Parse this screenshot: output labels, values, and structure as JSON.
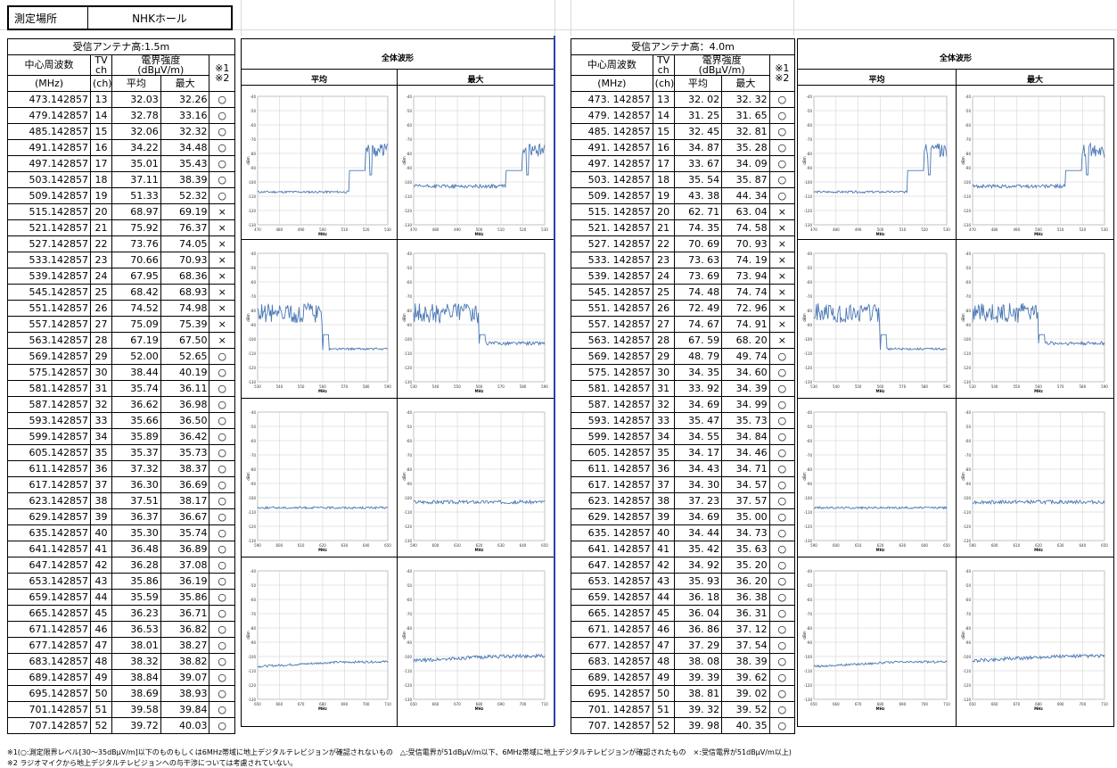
{
  "location": {
    "label": "測定場所",
    "value": "NHKホール"
  },
  "left": {
    "antenna": "受信アンテナ高:1.5m",
    "hdr_freq": "中心周波数",
    "hdr_ch": "TV\nch",
    "hdr_field": "電界強度\n(dBμV/m)",
    "hdr_note": "※1\n※2",
    "unit_freq": "(MHz)",
    "unit_ch": "(ch)",
    "hdr_avg": "平均",
    "hdr_max": "最大",
    "rows": [
      [
        "473.142857",
        "13",
        "32.03",
        "32.26",
        "○"
      ],
      [
        "479.142857",
        "14",
        "32.78",
        "33.16",
        "○"
      ],
      [
        "485.142857",
        "15",
        "32.06",
        "32.32",
        "○"
      ],
      [
        "491.142857",
        "16",
        "34.22",
        "34.48",
        "○"
      ],
      [
        "497.142857",
        "17",
        "35.01",
        "35.43",
        "○"
      ],
      [
        "503.142857",
        "18",
        "37.11",
        "38.39",
        "○"
      ],
      [
        "509.142857",
        "19",
        "51.33",
        "52.32",
        "○"
      ],
      [
        "515.142857",
        "20",
        "68.97",
        "69.19",
        "×"
      ],
      [
        "521.142857",
        "21",
        "75.92",
        "76.37",
        "×"
      ],
      [
        "527.142857",
        "22",
        "73.76",
        "74.05",
        "×"
      ],
      [
        "533.142857",
        "23",
        "70.66",
        "70.93",
        "×"
      ],
      [
        "539.142857",
        "24",
        "67.95",
        "68.36",
        "×"
      ],
      [
        "545.142857",
        "25",
        "68.42",
        "68.93",
        "×"
      ],
      [
        "551.142857",
        "26",
        "74.52",
        "74.98",
        "×"
      ],
      [
        "557.142857",
        "27",
        "75.09",
        "75.39",
        "×"
      ],
      [
        "563.142857",
        "28",
        "67.19",
        "67.50",
        "×"
      ],
      [
        "569.142857",
        "29",
        "52.00",
        "52.65",
        "○"
      ],
      [
        "575.142857",
        "30",
        "38.44",
        "40.19",
        "○"
      ],
      [
        "581.142857",
        "31",
        "35.74",
        "36.11",
        "○"
      ],
      [
        "587.142857",
        "32",
        "36.62",
        "36.98",
        "○"
      ],
      [
        "593.142857",
        "33",
        "35.66",
        "36.50",
        "○"
      ],
      [
        "599.142857",
        "34",
        "35.89",
        "36.42",
        "○"
      ],
      [
        "605.142857",
        "35",
        "35.37",
        "35.73",
        "○"
      ],
      [
        "611.142857",
        "36",
        "37.32",
        "38.37",
        "○"
      ],
      [
        "617.142857",
        "37",
        "36.30",
        "36.69",
        "○"
      ],
      [
        "623.142857",
        "38",
        "37.51",
        "38.17",
        "○"
      ],
      [
        "629.142857",
        "39",
        "36.37",
        "36.67",
        "○"
      ],
      [
        "635.142857",
        "40",
        "35.30",
        "35.74",
        "○"
      ],
      [
        "641.142857",
        "41",
        "36.48",
        "36.89",
        "○"
      ],
      [
        "647.142857",
        "42",
        "36.28",
        "37.08",
        "○"
      ],
      [
        "653.142857",
        "43",
        "35.86",
        "36.19",
        "○"
      ],
      [
        "659.142857",
        "44",
        "35.59",
        "35.86",
        "○"
      ],
      [
        "665.142857",
        "45",
        "36.23",
        "36.71",
        "○"
      ],
      [
        "671.142857",
        "46",
        "36.53",
        "36.82",
        "○"
      ],
      [
        "677.142857",
        "47",
        "38.01",
        "38.27",
        "○"
      ],
      [
        "683.142857",
        "48",
        "38.32",
        "38.82",
        "○"
      ],
      [
        "689.142857",
        "49",
        "38.84",
        "39.07",
        "○"
      ],
      [
        "695.142857",
        "50",
        "38.69",
        "38.93",
        "○"
      ],
      [
        "701.142857",
        "51",
        "39.58",
        "39.84",
        "○"
      ],
      [
        "707.142857",
        "52",
        "39.72",
        "40.03",
        "○"
      ]
    ]
  },
  "right": {
    "antenna": "受信アンテナ高：4.0m",
    "hdr_freq": "中心周波数",
    "hdr_ch": "TV\nch",
    "hdr_field": "電界強度\n(dBμV/m)",
    "hdr_note": "※1\n※2",
    "unit_freq": "(MHz)",
    "unit_ch": "(ch)",
    "hdr_avg": "平均",
    "hdr_max": "最大",
    "rows": [
      [
        "473. 142857",
        "13",
        "32. 02",
        "32. 32",
        "○"
      ],
      [
        "479. 142857",
        "14",
        "31. 25",
        "31. 65",
        "○"
      ],
      [
        "485. 142857",
        "15",
        "32. 45",
        "32. 81",
        "○"
      ],
      [
        "491. 142857",
        "16",
        "34. 87",
        "35. 28",
        "○"
      ],
      [
        "497. 142857",
        "17",
        "33. 67",
        "34. 09",
        "○"
      ],
      [
        "503. 142857",
        "18",
        "35. 54",
        "35. 87",
        "○"
      ],
      [
        "509. 142857",
        "19",
        "43. 38",
        "44. 34",
        "○"
      ],
      [
        "515. 142857",
        "20",
        "62. 71",
        "63. 04",
        "×"
      ],
      [
        "521. 142857",
        "21",
        "74. 35",
        "74. 58",
        "×"
      ],
      [
        "527. 142857",
        "22",
        "70. 69",
        "70. 93",
        "×"
      ],
      [
        "533. 142857",
        "23",
        "73. 63",
        "74. 19",
        "×"
      ],
      [
        "539. 142857",
        "24",
        "73. 69",
        "73. 94",
        "×"
      ],
      [
        "545. 142857",
        "25",
        "74. 48",
        "74. 74",
        "×"
      ],
      [
        "551. 142857",
        "26",
        "72. 49",
        "72. 96",
        "×"
      ],
      [
        "557. 142857",
        "27",
        "74. 67",
        "74. 91",
        "×"
      ],
      [
        "563. 142857",
        "28",
        "67. 59",
        "68. 20",
        "×"
      ],
      [
        "569. 142857",
        "29",
        "48. 79",
        "49. 74",
        "○"
      ],
      [
        "575. 142857",
        "30",
        "34. 35",
        "34. 60",
        "○"
      ],
      [
        "581. 142857",
        "31",
        "33. 92",
        "34. 39",
        "○"
      ],
      [
        "587. 142857",
        "32",
        "34. 69",
        "34. 99",
        "○"
      ],
      [
        "593. 142857",
        "33",
        "35. 47",
        "35. 73",
        "○"
      ],
      [
        "599. 142857",
        "34",
        "34. 55",
        "34. 84",
        "○"
      ],
      [
        "605. 142857",
        "35",
        "34. 17",
        "34. 46",
        "○"
      ],
      [
        "611. 142857",
        "36",
        "34. 43",
        "34. 71",
        "○"
      ],
      [
        "617. 142857",
        "37",
        "34. 30",
        "34. 57",
        "○"
      ],
      [
        "623. 142857",
        "38",
        "37. 23",
        "37. 57",
        "○"
      ],
      [
        "629. 142857",
        "39",
        "34. 69",
        "35. 00",
        "○"
      ],
      [
        "635. 142857",
        "40",
        "34. 44",
        "34. 73",
        "○"
      ],
      [
        "641. 142857",
        "41",
        "35. 42",
        "35. 63",
        "○"
      ],
      [
        "647. 142857",
        "42",
        "34. 92",
        "35. 20",
        "○"
      ],
      [
        "653. 142857",
        "43",
        "35. 93",
        "36. 20",
        "○"
      ],
      [
        "659. 142857",
        "44",
        "36. 18",
        "36. 38",
        "○"
      ],
      [
        "665. 142857",
        "45",
        "36. 04",
        "36. 31",
        "○"
      ],
      [
        "671. 142857",
        "46",
        "36. 86",
        "37. 12",
        "○"
      ],
      [
        "677. 142857",
        "47",
        "37. 29",
        "37. 54",
        "○"
      ],
      [
        "683. 142857",
        "48",
        "38. 08",
        "38. 39",
        "○"
      ],
      [
        "689. 142857",
        "49",
        "39. 39",
        "39. 62",
        "○"
      ],
      [
        "695. 142857",
        "50",
        "38. 81",
        "39. 02",
        "○"
      ],
      [
        "701. 142857",
        "51",
        "39. 32",
        "39. 52",
        "○"
      ],
      [
        "707. 142857",
        "52",
        "39. 98",
        "40. 35",
        "○"
      ]
    ]
  },
  "waveform": {
    "title": "全体波形",
    "avg": "平均",
    "max": "最大",
    "y_ticks": [
      "-40",
      "-50",
      "-60",
      "-70",
      "-80",
      "-90",
      "-100",
      "-110",
      "-120",
      "-130"
    ],
    "y_unit": "dBm",
    "x_unit": "MHz",
    "line_color": "#4a78b5",
    "bands": [
      [
        "470",
        "480",
        "490",
        "500",
        "510",
        "520",
        "530"
      ],
      [
        "530",
        "540",
        "550",
        "560",
        "570",
        "580",
        "590"
      ],
      [
        "590",
        "600",
        "610",
        "620",
        "630",
        "640",
        "650"
      ],
      [
        "650",
        "660",
        "670",
        "680",
        "690",
        "700",
        "710"
      ]
    ]
  },
  "notes": [
    "※1(○:測定限界レベル[30～35dBμV/m]以下のものもしくは6MHz帯域に地上デジタルテレビジョンが確認されないもの　△:受信電界が51dBμV/m以下、6MHz帯域に地上デジタルテレビジョンが確認されたもの　×:受信電界が51dBμV/m以上)",
    "※2 ラジオマイクから地上デジタルテレビジョンへの与干渉については考慮されていない。"
  ]
}
